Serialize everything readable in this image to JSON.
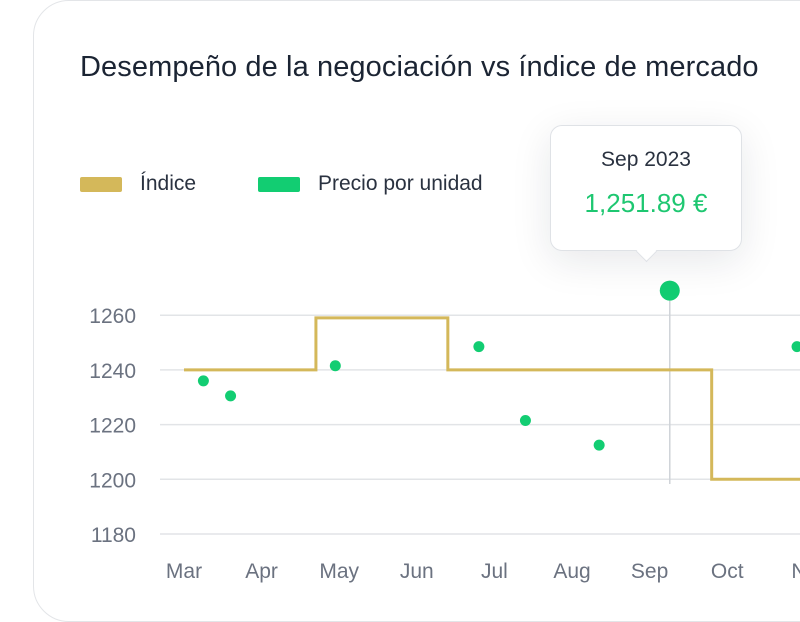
{
  "colors": {
    "index": "#d4b85a",
    "price": "#12cd72",
    "grid": "#e2e4e7",
    "text": "#6b7280"
  },
  "chart_data": {
    "type": "line",
    "title": "Desempeño de la negociación vs índice de mercado",
    "ylim": [
      1180,
      1260
    ],
    "yticks": [
      1260,
      1240,
      1220,
      1200,
      1180
    ],
    "categories": [
      "Mar",
      "Apr",
      "May",
      "Jun",
      "Jul",
      "Aug",
      "Sep",
      "Oct",
      "No"
    ],
    "legend": "top-left",
    "series": [
      {
        "name": "Índice",
        "style": "step",
        "points": [
          {
            "x": 2.0,
            "y": 1240
          },
          {
            "x": 3.7,
            "y": 1240
          },
          {
            "x": 3.7,
            "y": 1259
          },
          {
            "x": 5.4,
            "y": 1259
          },
          {
            "x": 5.4,
            "y": 1240
          },
          {
            "x": 8.8,
            "y": 1240
          },
          {
            "x": 8.8,
            "y": 1200
          },
          {
            "x": 10.2,
            "y": 1200
          }
        ]
      },
      {
        "name": "Precio por unidad",
        "style": "scatter",
        "points": [
          {
            "x": 2.25,
            "y": 1236
          },
          {
            "x": 2.6,
            "y": 1230.5
          },
          {
            "x": 3.95,
            "y": 1241.5
          },
          {
            "x": 5.8,
            "y": 1248.5
          },
          {
            "x": 6.4,
            "y": 1221.5
          },
          {
            "x": 7.35,
            "y": 1212.5
          },
          {
            "x": 8.26,
            "y": 1269
          },
          {
            "x": 9.9,
            "y": 1248.5
          }
        ]
      }
    ],
    "tooltip": {
      "date": "Sep 2023",
      "value": "1,251.89 €"
    }
  }
}
